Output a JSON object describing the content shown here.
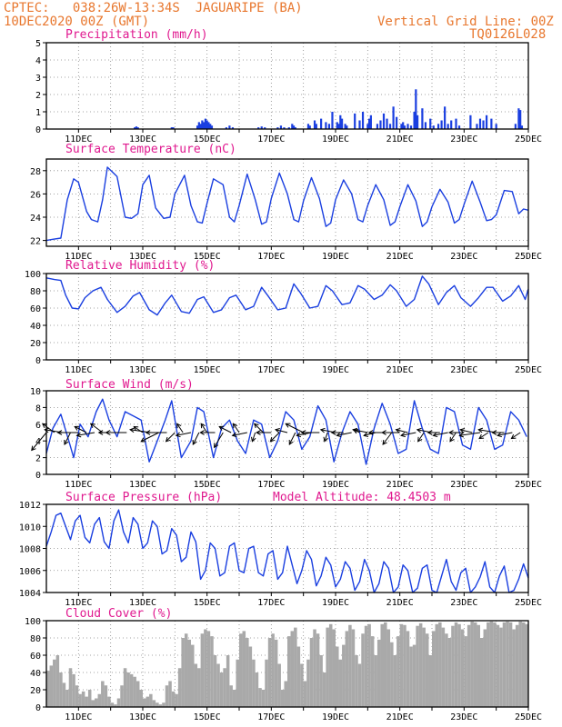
{
  "header": {
    "line1_left": "CPTEC:   038:26W-13:34S  JAGUARIPE (BA)",
    "line2_left": "10DEC2020 00Z (GMT)",
    "line1_right": "Vertical Grid Line: 00Z",
    "line2_right": "TQ0126L028"
  },
  "colors": {
    "header": "#e8772e",
    "title": "#e0198f",
    "line": "#1a3fe0",
    "cloud": "#a9a9a9",
    "arrow": "#000000"
  },
  "x_labels": [
    "11DEC",
    "13DEC",
    "15DEC",
    "17DEC",
    "19DEC",
    "21DEC",
    "23DEC",
    "25DEC"
  ],
  "chart_data": [
    {
      "type": "bar",
      "title": "Precipitation (mm/h)",
      "ylim": [
        0,
        5
      ],
      "yticks": [
        0,
        1,
        2,
        3,
        4,
        5
      ],
      "x_unit": "days since 10DEC2020 00Z",
      "x": [
        2.75,
        2.8,
        2.85,
        3.9,
        3.95,
        4.7,
        4.75,
        4.8,
        4.85,
        4.9,
        4.95,
        5.0,
        5.05,
        5.1,
        5.15,
        5.6,
        5.7,
        5.8,
        6.6,
        6.7,
        6.8,
        7.2,
        7.3,
        7.4,
        7.55,
        7.65,
        7.7,
        7.75,
        8.15,
        8.2,
        8.35,
        8.4,
        8.55,
        8.7,
        8.8,
        8.9,
        9.05,
        9.1,
        9.15,
        9.2,
        9.3,
        9.35,
        9.6,
        9.75,
        9.85,
        10.0,
        10.05,
        10.1,
        10.3,
        10.4,
        10.5,
        10.6,
        10.7,
        10.8,
        10.9,
        11.05,
        11.1,
        11.15,
        11.25,
        11.35,
        11.45,
        11.5,
        11.55,
        11.7,
        11.8,
        11.95,
        12.05,
        12.2,
        12.3,
        12.4,
        12.5,
        12.6,
        12.75,
        12.85,
        13.2,
        13.4,
        13.5,
        13.6,
        13.7,
        13.85,
        14.0,
        14.6,
        14.7,
        14.75,
        14.8
      ],
      "values": [
        0.1,
        0.15,
        0.1,
        0.1,
        0.1,
        0.2,
        0.4,
        0.3,
        0.5,
        0.4,
        0.6,
        0.5,
        0.4,
        0.3,
        0.2,
        0.1,
        0.2,
        0.1,
        0.1,
        0.15,
        0.1,
        0.1,
        0.2,
        0.1,
        0.1,
        0.3,
        0.2,
        0.1,
        0.3,
        0.2,
        0.5,
        0.3,
        0.6,
        0.4,
        0.3,
        1.0,
        0.4,
        0.3,
        0.8,
        0.6,
        0.3,
        0.2,
        0.9,
        0.5,
        1.0,
        0.3,
        0.6,
        0.8,
        0.3,
        0.5,
        0.9,
        0.6,
        0.3,
        1.3,
        0.7,
        0.3,
        0.4,
        0.2,
        0.3,
        0.2,
        1.0,
        2.3,
        0.8,
        1.2,
        0.4,
        0.6,
        0.2,
        0.3,
        0.5,
        1.3,
        0.3,
        0.5,
        0.6,
        0.2,
        0.8,
        0.3,
        0.6,
        0.5,
        0.8,
        0.6,
        0.3,
        0.3,
        1.2,
        1.1,
        0.2
      ]
    },
    {
      "type": "line",
      "title": "Surface Temperature (nC)",
      "ylim": [
        21.5,
        29
      ],
      "yticks": [
        22,
        24,
        26,
        28
      ],
      "x_unit": "days since 10DEC2020 00Z",
      "x": [
        0.0,
        0.2,
        0.45,
        0.65,
        0.85,
        1.0,
        1.25,
        1.4,
        1.6,
        1.75,
        1.9,
        2.2,
        2.45,
        2.65,
        2.85,
        3.0,
        3.2,
        3.4,
        3.65,
        3.85,
        4.0,
        4.3,
        4.5,
        4.7,
        4.85,
        5.0,
        5.2,
        5.5,
        5.7,
        5.85,
        6.0,
        6.25,
        6.5,
        6.7,
        6.85,
        7.0,
        7.25,
        7.5,
        7.7,
        7.85,
        8.0,
        8.25,
        8.5,
        8.7,
        8.85,
        9.0,
        9.25,
        9.5,
        9.7,
        9.85,
        10.0,
        10.25,
        10.5,
        10.7,
        10.85,
        11.0,
        11.25,
        11.5,
        11.7,
        11.85,
        12.0,
        12.25,
        12.5,
        12.7,
        12.85,
        13.0,
        13.25,
        13.5,
        13.7,
        13.85,
        14.0,
        14.25,
        14.5,
        14.7,
        14.85,
        15.0
      ],
      "values": [
        22.0,
        22.1,
        22.2,
        25.5,
        27.3,
        27.0,
        24.5,
        23.8,
        23.6,
        25.5,
        28.3,
        27.5,
        24.0,
        23.9,
        24.3,
        26.8,
        27.6,
        24.8,
        23.9,
        24.0,
        26.0,
        27.6,
        25.0,
        23.6,
        23.5,
        25.2,
        27.3,
        26.8,
        24.0,
        23.6,
        25.0,
        27.7,
        25.5,
        23.4,
        23.6,
        25.6,
        27.8,
        26.0,
        23.8,
        23.6,
        25.4,
        27.4,
        25.6,
        23.2,
        23.5,
        25.5,
        27.2,
        26.0,
        23.8,
        23.6,
        25.0,
        26.8,
        25.5,
        23.3,
        23.6,
        24.9,
        26.8,
        25.4,
        23.2,
        23.6,
        24.9,
        26.4,
        25.3,
        23.5,
        23.8,
        25.1,
        27.1,
        25.3,
        23.7,
        23.8,
        24.2,
        26.3,
        26.2,
        24.3,
        24.7,
        24.6
      ]
    },
    {
      "type": "line",
      "title": "Relative Humidity (%)",
      "ylim": [
        0,
        100
      ],
      "yticks": [
        0,
        20,
        40,
        60,
        80,
        100
      ],
      "x_unit": "days since 10DEC2020 00Z",
      "x": [
        0.0,
        0.25,
        0.45,
        0.6,
        0.8,
        1.0,
        1.2,
        1.45,
        1.7,
        1.9,
        2.2,
        2.45,
        2.7,
        2.9,
        3.2,
        3.45,
        3.7,
        3.9,
        4.2,
        4.45,
        4.7,
        4.9,
        5.2,
        5.45,
        5.7,
        5.9,
        6.2,
        6.45,
        6.7,
        6.9,
        7.2,
        7.45,
        7.7,
        7.9,
        8.2,
        8.45,
        8.7,
        8.9,
        9.2,
        9.45,
        9.7,
        9.9,
        10.2,
        10.45,
        10.7,
        10.9,
        11.2,
        11.45,
        11.7,
        11.9,
        12.2,
        12.45,
        12.7,
        12.9,
        13.2,
        13.45,
        13.7,
        13.9,
        14.2,
        14.45,
        14.7,
        14.9,
        15.0
      ],
      "values": [
        95,
        93,
        92,
        75,
        60,
        59,
        72,
        80,
        84,
        70,
        55,
        62,
        74,
        78,
        58,
        52,
        66,
        75,
        56,
        54,
        70,
        73,
        55,
        58,
        72,
        75,
        58,
        62,
        84,
        74,
        58,
        60,
        88,
        78,
        60,
        62,
        86,
        80,
        64,
        66,
        86,
        82,
        70,
        75,
        87,
        80,
        62,
        70,
        97,
        88,
        64,
        78,
        86,
        72,
        62,
        72,
        84,
        84,
        68,
        74,
        86,
        70,
        82
      ]
    },
    {
      "type": "line",
      "title": "Surface Wind (m/s)",
      "ylim": [
        0,
        10
      ],
      "yticks": [
        0,
        2,
        4,
        6,
        8,
        10
      ],
      "x_unit": "days since 10DEC2020 00Z",
      "x": [
        0.0,
        0.2,
        0.45,
        0.7,
        0.85,
        1.05,
        1.3,
        1.55,
        1.75,
        1.95,
        2.2,
        2.45,
        2.7,
        2.95,
        3.2,
        3.5,
        3.7,
        3.9,
        4.2,
        4.5,
        4.7,
        4.9,
        5.2,
        5.45,
        5.7,
        5.95,
        6.2,
        6.45,
        6.7,
        6.95,
        7.2,
        7.45,
        7.7,
        7.95,
        8.2,
        8.45,
        8.7,
        8.95,
        9.2,
        9.45,
        9.7,
        9.95,
        10.2,
        10.45,
        10.7,
        10.95,
        11.2,
        11.45,
        11.7,
        11.95,
        12.2,
        12.45,
        12.7,
        12.95,
        13.2,
        13.45,
        13.7,
        13.95,
        14.2,
        14.45,
        14.7,
        14.95
      ],
      "values": [
        2.5,
        5.5,
        7.2,
        4.0,
        2.0,
        6.0,
        4.5,
        7.5,
        9.0,
        6.5,
        4.5,
        7.5,
        7.0,
        6.5,
        1.5,
        4.5,
        6.5,
        8.8,
        2.0,
        4.0,
        8.0,
        7.5,
        2.0,
        5.5,
        6.5,
        4.0,
        2.5,
        6.5,
        6.0,
        2.0,
        4.0,
        7.5,
        6.5,
        3.0,
        4.5,
        8.2,
        6.5,
        1.5,
        5.0,
        7.5,
        6.0,
        1.2,
        5.5,
        8.5,
        6.0,
        2.5,
        3.0,
        8.8,
        5.5,
        3.0,
        2.5,
        8.0,
        7.5,
        3.5,
        3.0,
        8.0,
        6.5,
        3.0,
        3.5,
        7.5,
        6.5,
        4.5
      ],
      "vectors": {
        "x": [
          0.0,
          0.25,
          0.5,
          0.75,
          1.0,
          1.25,
          1.5,
          1.75,
          2.0,
          2.5,
          3.0,
          3.25,
          3.5,
          3.75,
          4.0,
          4.25,
          4.5,
          4.75,
          5.0,
          5.25,
          5.5,
          5.75,
          6.0,
          6.25,
          6.5,
          6.75,
          7.0,
          7.25,
          7.5,
          7.75,
          8.0,
          8.25,
          8.5,
          8.75,
          9.0,
          9.25,
          9.5,
          9.75,
          10.0,
          10.25,
          10.5,
          10.75,
          11.0,
          11.25,
          11.5,
          11.75,
          12.0,
          12.25,
          12.5,
          12.75,
          13.0,
          13.25,
          13.5,
          13.75,
          14.0,
          14.25,
          14.5,
          14.75
        ],
        "u": [
          -2.5,
          -2.0,
          -3.0,
          -1.0,
          -3.5,
          -2.0,
          -3.0,
          -2.0,
          -2.0,
          -3.5,
          -1.5,
          -3.5,
          -3.0,
          -3.5,
          -1.5,
          -1.0,
          -2.5,
          -1.0,
          -1.0,
          -2.5,
          -1.5,
          -2.0,
          -1.0,
          -2.5,
          -0.5,
          -1.5,
          -2.5,
          -1.5,
          -2.0,
          -1.0,
          -3.0,
          -2.5,
          -3.0,
          -0.5,
          -2.5,
          -2.0,
          -2.5,
          -1.0,
          -2.5,
          -2.0,
          -2.5,
          -1.5,
          -3.0,
          -2.0,
          -2.5,
          -1.0,
          -2.5,
          -2.0,
          -2.5,
          -1.0,
          -2.5,
          -2.0,
          -3.5,
          -1.5,
          -3.0,
          -2.0,
          -2.5,
          -1.5
        ],
        "v": [
          -3.0,
          1.5,
          0.5,
          -2.0,
          0.0,
          1.0,
          -0.5,
          1.5,
          0.0,
          0.0,
          1.0,
          0.5,
          -1.5,
          0.0,
          -1.5,
          1.5,
          -0.5,
          -2.0,
          1.5,
          0.0,
          -2.5,
          1.0,
          1.5,
          -0.5,
          -1.5,
          1.5,
          0.0,
          -1.5,
          0.5,
          -2.0,
          1.5,
          -0.5,
          0.0,
          -1.5,
          0.5,
          0.0,
          -0.5,
          0.5,
          0.5,
          -0.5,
          0.0,
          -2.0,
          0.0,
          0.5,
          -0.5,
          -1.5,
          0.5,
          0.0,
          -0.5,
          -1.5,
          0.0,
          0.5,
          -0.5,
          -1.0,
          0.5,
          0.0,
          -0.5,
          -1.0
        ]
      }
    },
    {
      "type": "line",
      "title": "Surface Pressure (hPa)",
      "annotation": "Model Altitude: 48.4503 m",
      "ylim": [
        1004,
        1012
      ],
      "yticks": [
        1004,
        1006,
        1008,
        1010,
        1012
      ],
      "x_unit": "days since 10DEC2020 00Z",
      "x": [
        0.0,
        0.15,
        0.3,
        0.45,
        0.6,
        0.75,
        0.9,
        1.05,
        1.2,
        1.35,
        1.5,
        1.65,
        1.8,
        1.95,
        2.1,
        2.25,
        2.4,
        2.55,
        2.7,
        2.85,
        3.0,
        3.15,
        3.3,
        3.45,
        3.6,
        3.75,
        3.9,
        4.05,
        4.2,
        4.35,
        4.5,
        4.65,
        4.8,
        4.95,
        5.1,
        5.25,
        5.4,
        5.55,
        5.7,
        5.85,
        6.0,
        6.15,
        6.3,
        6.45,
        6.6,
        6.75,
        6.9,
        7.05,
        7.2,
        7.35,
        7.5,
        7.65,
        7.8,
        7.95,
        8.1,
        8.25,
        8.4,
        8.55,
        8.7,
        8.85,
        9.0,
        9.15,
        9.3,
        9.45,
        9.6,
        9.75,
        9.9,
        10.05,
        10.2,
        10.35,
        10.5,
        10.65,
        10.8,
        10.95,
        11.1,
        11.25,
        11.4,
        11.55,
        11.7,
        11.85,
        12.0,
        12.15,
        12.3,
        12.45,
        12.6,
        12.75,
        12.9,
        13.05,
        13.2,
        13.35,
        13.5,
        13.65,
        13.8,
        13.95,
        14.1,
        14.25,
        14.4,
        14.55,
        14.7,
        14.85,
        15.0
      ],
      "values": [
        1008.2,
        1009.5,
        1011.0,
        1011.2,
        1010.0,
        1008.8,
        1010.5,
        1011.0,
        1009.0,
        1008.5,
        1010.2,
        1010.8,
        1008.6,
        1008.0,
        1010.5,
        1011.5,
        1009.5,
        1008.5,
        1010.8,
        1010.2,
        1008.0,
        1008.5,
        1010.5,
        1010.0,
        1007.5,
        1007.8,
        1009.8,
        1009.2,
        1006.8,
        1007.2,
        1009.5,
        1008.6,
        1005.2,
        1006.0,
        1008.5,
        1008.0,
        1005.5,
        1005.8,
        1008.2,
        1008.5,
        1006.0,
        1005.8,
        1008.0,
        1008.2,
        1005.8,
        1005.5,
        1007.5,
        1007.8,
        1005.2,
        1005.8,
        1008.2,
        1006.5,
        1004.8,
        1006.0,
        1007.8,
        1007.0,
        1004.6,
        1005.5,
        1007.2,
        1006.5,
        1004.5,
        1005.2,
        1006.8,
        1006.2,
        1004.2,
        1005.0,
        1007.0,
        1006.0,
        1004.0,
        1004.8,
        1006.8,
        1006.2,
        1004.0,
        1004.5,
        1006.5,
        1006.0,
        1004.0,
        1004.4,
        1006.2,
        1006.5,
        1004.2,
        1004.0,
        1005.5,
        1007.0,
        1005.0,
        1004.2,
        1005.8,
        1006.2,
        1004.0,
        1004.5,
        1005.4,
        1006.8,
        1004.5,
        1004.0,
        1005.5,
        1006.4,
        1004.0,
        1004.2,
        1005.2,
        1006.6,
        1005.3
      ]
    },
    {
      "type": "bar",
      "title": "Cloud Cover (%)",
      "ylim": [
        0,
        100
      ],
      "yticks": [
        0,
        20,
        40,
        60,
        80,
        100
      ],
      "x_unit": "days since 10DEC2020 00Z",
      "x": [
        0.0,
        0.1,
        0.2,
        0.3,
        0.4,
        0.5,
        0.6,
        0.7,
        0.8,
        0.9,
        1.0,
        1.1,
        1.2,
        1.3,
        1.4,
        1.5,
        1.6,
        1.7,
        1.8,
        1.9,
        2.0,
        2.1,
        2.2,
        2.3,
        2.4,
        2.5,
        2.6,
        2.7,
        2.8,
        2.9,
        3.0,
        3.1,
        3.2,
        3.3,
        3.4,
        3.5,
        3.6,
        3.7,
        3.8,
        3.9,
        4.0,
        4.1,
        4.2,
        4.3,
        4.4,
        4.5,
        4.6,
        4.7,
        4.8,
        4.9,
        5.0,
        5.1,
        5.2,
        5.3,
        5.4,
        5.5,
        5.6,
        5.7,
        5.8,
        5.9,
        6.0,
        6.1,
        6.2,
        6.3,
        6.4,
        6.5,
        6.6,
        6.7,
        6.8,
        6.9,
        7.0,
        7.1,
        7.2,
        7.3,
        7.4,
        7.5,
        7.6,
        7.7,
        7.8,
        7.9,
        8.0,
        8.1,
        8.2,
        8.3,
        8.4,
        8.5,
        8.6,
        8.7,
        8.8,
        8.9,
        9.0,
        9.1,
        9.2,
        9.3,
        9.4,
        9.5,
        9.6,
        9.7,
        9.8,
        9.9,
        10.0,
        10.1,
        10.2,
        10.3,
        10.4,
        10.5,
        10.6,
        10.7,
        10.8,
        10.9,
        11.0,
        11.1,
        11.2,
        11.3,
        11.4,
        11.5,
        11.6,
        11.7,
        11.8,
        11.9,
        12.0,
        12.1,
        12.2,
        12.3,
        12.4,
        12.5,
        12.6,
        12.7,
        12.8,
        12.9,
        13.0,
        13.1,
        13.2,
        13.3,
        13.4,
        13.5,
        13.6,
        13.7,
        13.8,
        13.9,
        14.0,
        14.1,
        14.2,
        14.3,
        14.4,
        14.5,
        14.6,
        14.7,
        14.8,
        14.9
      ],
      "values": [
        42,
        48,
        55,
        60,
        40,
        28,
        20,
        45,
        38,
        25,
        15,
        18,
        12,
        20,
        8,
        10,
        15,
        30,
        25,
        12,
        5,
        3,
        10,
        25,
        45,
        40,
        38,
        35,
        30,
        20,
        10,
        12,
        15,
        8,
        5,
        3,
        5,
        25,
        30,
        18,
        15,
        45,
        80,
        85,
        78,
        72,
        50,
        45,
        85,
        90,
        88,
        82,
        60,
        50,
        40,
        45,
        60,
        25,
        20,
        55,
        85,
        88,
        80,
        70,
        55,
        40,
        22,
        20,
        55,
        80,
        85,
        78,
        50,
        20,
        30,
        82,
        88,
        92,
        70,
        50,
        30,
        55,
        80,
        90,
        85,
        60,
        40,
        92,
        96,
        90,
        70,
        55,
        72,
        88,
        95,
        90,
        60,
        50,
        85,
        94,
        96,
        82,
        60,
        78,
        96,
        98,
        90,
        75,
        60,
        82,
        96,
        95,
        88,
        70,
        72,
        94,
        97,
        92,
        85,
        60,
        88,
        96,
        98,
        92,
        85,
        80,
        94,
        98,
        96,
        90,
        82,
        95,
        99,
        98,
        95,
        80,
        90,
        98,
        99,
        98,
        95,
        92,
        98,
        99,
        98,
        90,
        95,
        99,
        98,
        96
      ]
    }
  ]
}
